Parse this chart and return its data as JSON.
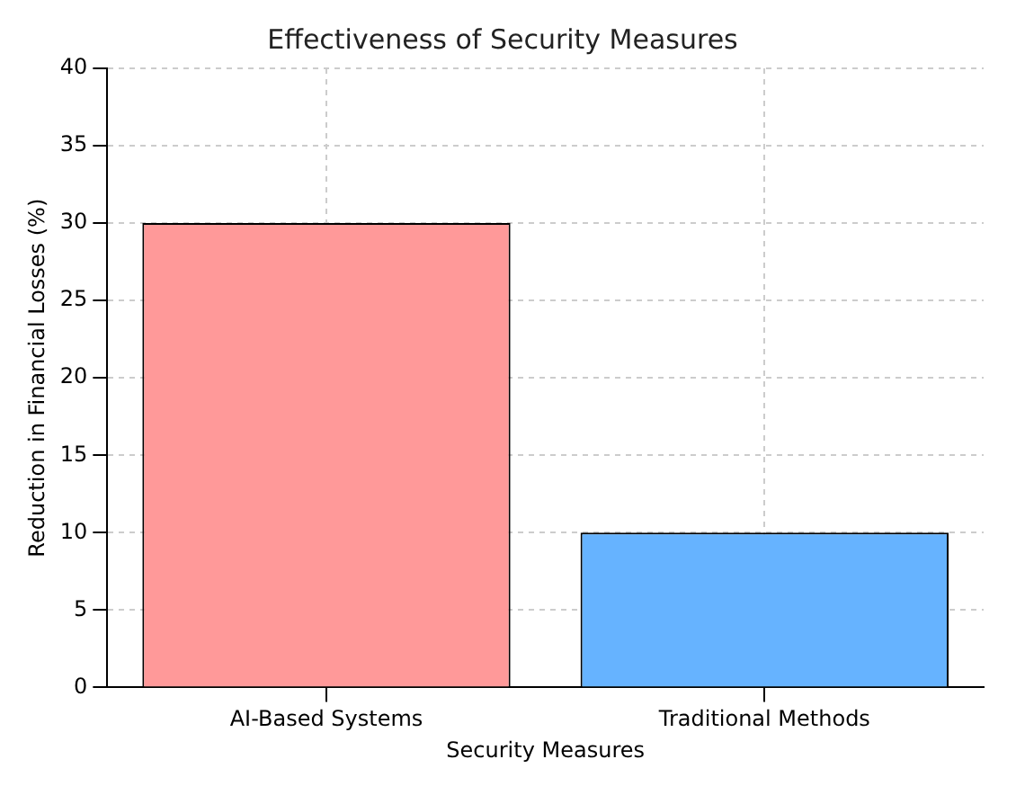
{
  "chart_data": {
    "type": "bar",
    "title": "Effectiveness of Security Measures",
    "xlabel": "Security Measures",
    "ylabel": "Reduction in Financial Losses (%)",
    "categories": [
      "AI-Based Systems",
      "Traditional Methods"
    ],
    "values": [
      30,
      10
    ],
    "colors": [
      "#ff9999",
      "#66b3ff"
    ],
    "ylim": [
      0,
      40
    ],
    "yticks": [
      0,
      5,
      10,
      15,
      20,
      25,
      30,
      35,
      40
    ],
    "grid": true
  }
}
